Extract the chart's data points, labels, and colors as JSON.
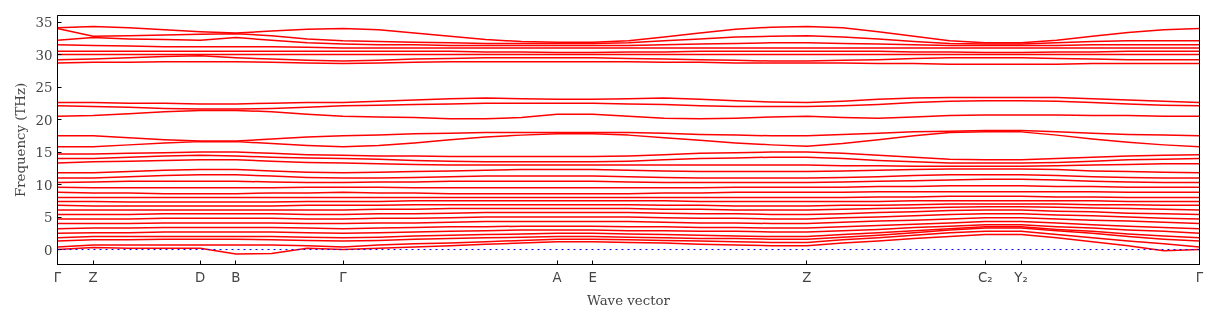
{
  "chart_data": {
    "type": "line",
    "xlabel": "Wave vector",
    "ylabel": "Frequency (THz)",
    "categories": [
      "Γ",
      "Z",
      null,
      null,
      "D",
      "B",
      null,
      null,
      "Γ",
      null,
      null,
      null,
      null,
      null,
      "A",
      "E",
      null,
      null,
      null,
      null,
      null,
      "Z",
      null,
      null,
      null,
      null,
      "C₂",
      "Y₂",
      null,
      null,
      null,
      null,
      "Γ"
    ],
    "ylim": [
      -2.3,
      36
    ],
    "yticks": [
      0,
      5,
      10,
      15,
      20,
      25,
      30,
      35
    ],
    "grid": false,
    "marker": "none",
    "line_style": "solid",
    "ref_lines": [
      {
        "axis": "y",
        "value": 0,
        "color": "#0000ff",
        "line_style": "dotted"
      }
    ],
    "series": [
      {
        "color": "#ff0000",
        "values": [
          34.1,
          34.3,
          34.1,
          33.8,
          33.5,
          33.3,
          33.6,
          33.9,
          34.0,
          33.8,
          33.3,
          32.8,
          32.3,
          32.0,
          31.9,
          31.9,
          32.1,
          32.7,
          33.3,
          33.9,
          34.2,
          34.3,
          34.1,
          33.5,
          32.8,
          32.1,
          31.8,
          31.8,
          32.2,
          32.8,
          33.4,
          33.8,
          34.0
        ]
      },
      {
        "color": "#ff0000",
        "values": [
          34.0,
          32.8,
          32.9,
          33.0,
          33.1,
          33.2,
          32.9,
          32.4,
          32.1,
          32.0,
          31.9,
          31.8,
          31.7,
          31.7,
          31.7,
          31.7,
          31.8,
          32.1,
          32.4,
          32.7,
          32.8,
          32.9,
          32.7,
          32.4,
          32.0,
          31.7,
          31.6,
          31.6,
          31.8,
          32.0,
          32.1,
          32.1,
          32.1
        ]
      },
      {
        "color": "#ff0000",
        "values": [
          32.2,
          32.6,
          32.4,
          32.3,
          32.2,
          32.6,
          32.2,
          31.8,
          31.6,
          31.5,
          31.5,
          31.4,
          31.4,
          31.4,
          31.4,
          31.4,
          31.4,
          31.5,
          31.6,
          31.7,
          31.8,
          31.8,
          31.7,
          31.6,
          31.5,
          31.4,
          31.4,
          31.4,
          31.4,
          31.5,
          31.5,
          31.5,
          31.5
        ]
      },
      {
        "color": "#ff0000",
        "values": [
          31.5,
          31.4,
          31.3,
          31.2,
          31.2,
          31.2,
          31.2,
          31.1,
          31.0,
          31.0,
          31.0,
          31.0,
          31.0,
          31.0,
          31.0,
          31.0,
          31.0,
          31.0,
          31.0,
          31.0,
          31.0,
          31.0,
          31.0,
          31.0,
          31.0,
          31.0,
          31.0,
          31.0,
          31.0,
          31.0,
          31.0,
          31.0,
          31.0
        ]
      },
      {
        "color": "#ff0000",
        "values": [
          30.5,
          30.5,
          30.5,
          30.5,
          30.5,
          30.5,
          30.5,
          30.5,
          30.5,
          30.5,
          30.5,
          30.5,
          30.4,
          30.4,
          30.3,
          30.3,
          30.4,
          30.4,
          30.5,
          30.5,
          30.5,
          30.5,
          30.5,
          30.5,
          30.4,
          30.4,
          30.3,
          30.3,
          30.4,
          30.4,
          30.5,
          30.5,
          30.5
        ]
      },
      {
        "color": "#ff0000",
        "values": [
          30.0,
          30.0,
          30.0,
          30.0,
          30.0,
          30.0,
          30.0,
          30.0,
          30.0,
          30.0,
          30.0,
          30.0,
          30.0,
          30.0,
          30.0,
          30.0,
          30.0,
          30.0,
          30.0,
          30.0,
          30.0,
          30.0,
          30.0,
          30.0,
          30.0,
          30.0,
          30.0,
          30.0,
          30.0,
          30.0,
          30.0,
          30.0,
          30.0
        ]
      },
      {
        "color": "#ff0000",
        "values": [
          29.2,
          29.3,
          29.5,
          29.7,
          29.8,
          29.5,
          29.3,
          29.1,
          29.0,
          29.1,
          29.3,
          29.4,
          29.5,
          29.5,
          29.5,
          29.5,
          29.4,
          29.3,
          29.2,
          29.1,
          29.0,
          29.0,
          29.1,
          29.2,
          29.4,
          29.5,
          29.5,
          29.5,
          29.4,
          29.3,
          29.2,
          29.2,
          29.2
        ]
      },
      {
        "color": "#ff0000",
        "values": [
          28.7,
          28.8,
          28.8,
          28.9,
          28.9,
          28.9,
          28.8,
          28.7,
          28.6,
          28.7,
          28.8,
          28.9,
          28.9,
          28.9,
          28.9,
          28.9,
          28.9,
          28.8,
          28.8,
          28.7,
          28.7,
          28.7,
          28.7,
          28.6,
          28.6,
          28.5,
          28.5,
          28.5,
          28.5,
          28.6,
          28.6,
          28.6,
          28.6
        ]
      },
      {
        "color": "#ff0000",
        "values": [
          22.6,
          22.6,
          22.5,
          22.5,
          22.4,
          22.4,
          22.5,
          22.6,
          22.6,
          22.8,
          23.0,
          23.2,
          23.3,
          23.2,
          23.1,
          23.1,
          23.2,
          23.3,
          23.1,
          22.9,
          22.7,
          22.6,
          22.8,
          23.1,
          23.3,
          23.4,
          23.4,
          23.4,
          23.4,
          23.2,
          23.0,
          22.8,
          22.6
        ]
      },
      {
        "color": "#ff0000",
        "values": [
          22.1,
          22.0,
          21.9,
          21.7,
          21.6,
          21.6,
          21.7,
          21.9,
          22.1,
          22.2,
          22.3,
          22.4,
          22.5,
          22.5,
          22.5,
          22.5,
          22.4,
          22.3,
          22.1,
          22.0,
          22.0,
          22.0,
          22.1,
          22.3,
          22.6,
          22.8,
          22.9,
          22.9,
          22.8,
          22.6,
          22.4,
          22.2,
          22.1
        ]
      },
      {
        "color": "#ff0000",
        "values": [
          20.5,
          20.6,
          20.9,
          21.2,
          21.4,
          21.4,
          21.2,
          20.8,
          20.5,
          20.4,
          20.3,
          20.1,
          20.1,
          20.3,
          20.8,
          20.8,
          20.5,
          20.2,
          20.1,
          20.2,
          20.4,
          20.5,
          20.3,
          20.2,
          20.4,
          20.6,
          20.7,
          20.7,
          20.7,
          20.6,
          20.6,
          20.5,
          20.5
        ]
      },
      {
        "color": "#ff0000",
        "values": [
          17.5,
          17.5,
          17.2,
          16.9,
          16.7,
          16.7,
          17.0,
          17.3,
          17.5,
          17.6,
          17.8,
          17.9,
          18.0,
          18.0,
          18.0,
          18.0,
          18.0,
          17.9,
          17.7,
          17.6,
          17.5,
          17.5,
          17.7,
          17.9,
          18.1,
          18.2,
          18.3,
          18.3,
          18.1,
          17.9,
          17.7,
          17.6,
          17.5
        ]
      },
      {
        "color": "#ff0000",
        "values": [
          15.8,
          15.8,
          16.1,
          16.4,
          16.6,
          16.6,
          16.3,
          16.0,
          15.8,
          16.0,
          16.4,
          16.9,
          17.3,
          17.6,
          17.8,
          17.8,
          17.6,
          17.2,
          16.8,
          16.4,
          16.1,
          15.9,
          16.3,
          16.9,
          17.5,
          18.0,
          18.1,
          18.1,
          17.6,
          17.0,
          16.5,
          16.1,
          15.8
        ]
      },
      {
        "color": "#ff0000",
        "values": [
          14.7,
          14.7,
          14.8,
          14.9,
          15.0,
          15.0,
          14.8,
          14.6,
          14.5,
          14.4,
          14.4,
          14.3,
          14.3,
          14.3,
          14.3,
          14.3,
          14.4,
          14.6,
          14.8,
          14.9,
          15.0,
          15.0,
          14.8,
          14.5,
          14.2,
          13.9,
          13.8,
          13.8,
          14.0,
          14.2,
          14.4,
          14.5,
          14.6
        ]
      },
      {
        "color": "#ff0000",
        "values": [
          14.0,
          14.0,
          14.2,
          14.4,
          14.5,
          14.4,
          14.2,
          14.1,
          14.0,
          13.9,
          13.7,
          13.6,
          13.5,
          13.5,
          13.5,
          13.5,
          13.6,
          13.8,
          14.0,
          14.1,
          14.2,
          14.2,
          14.0,
          13.7,
          13.5,
          13.3,
          13.3,
          13.3,
          13.4,
          13.6,
          13.8,
          13.9,
          14.0
        ]
      },
      {
        "color": "#ff0000",
        "values": [
          13.3,
          13.5,
          13.6,
          13.7,
          13.8,
          13.8,
          13.6,
          13.4,
          13.3,
          13.2,
          13.1,
          13.0,
          13.0,
          13.0,
          13.0,
          13.0,
          13.0,
          13.0,
          13.0,
          13.0,
          13.0,
          13.0,
          12.9,
          12.9,
          12.8,
          12.8,
          12.8,
          12.8,
          12.9,
          13.0,
          13.1,
          13.2,
          13.2
        ]
      },
      {
        "color": "#ff0000",
        "values": [
          11.8,
          11.8,
          12.0,
          12.2,
          12.3,
          12.3,
          12.1,
          11.9,
          11.8,
          11.9,
          12.0,
          12.1,
          12.2,
          12.3,
          12.3,
          12.3,
          12.2,
          12.1,
          12.0,
          12.0,
          12.0,
          12.0,
          12.1,
          12.2,
          12.3,
          12.4,
          12.4,
          12.4,
          12.3,
          12.1,
          12.0,
          11.9,
          11.8
        ]
      },
      {
        "color": "#ff0000",
        "values": [
          11.0,
          11.0,
          11.2,
          11.4,
          11.5,
          11.5,
          11.3,
          11.1,
          11.0,
          11.0,
          11.1,
          11.2,
          11.3,
          11.3,
          11.3,
          11.3,
          11.2,
          11.1,
          11.0,
          11.0,
          11.0,
          11.0,
          11.1,
          11.2,
          11.4,
          11.5,
          11.5,
          11.5,
          11.4,
          11.2,
          11.1,
          11.0,
          11.0
        ]
      },
      {
        "color": "#ff0000",
        "values": [
          10.3,
          10.4,
          10.5,
          10.5,
          10.5,
          10.5,
          10.4,
          10.3,
          10.3,
          10.4,
          10.4,
          10.5,
          10.5,
          10.5,
          10.5,
          10.5,
          10.4,
          10.3,
          10.3,
          10.3,
          10.3,
          10.3,
          10.4,
          10.5,
          10.6,
          10.7,
          10.8,
          10.8,
          10.7,
          10.5,
          10.4,
          10.3,
          10.3
        ]
      },
      {
        "color": "#ff0000",
        "values": [
          9.6,
          9.5,
          9.5,
          9.5,
          9.5,
          9.5,
          9.5,
          9.6,
          9.6,
          9.6,
          9.5,
          9.5,
          9.5,
          9.5,
          9.5,
          9.5,
          9.5,
          9.5,
          9.5,
          9.6,
          9.6,
          9.6,
          9.6,
          9.7,
          9.7,
          9.8,
          9.8,
          9.8,
          9.7,
          9.7,
          9.6,
          9.6,
          9.6
        ]
      },
      {
        "color": "#ff0000",
        "values": [
          8.8,
          8.7,
          8.7,
          8.6,
          8.6,
          8.6,
          8.7,
          8.7,
          8.8,
          8.7,
          8.7,
          8.6,
          8.6,
          8.6,
          8.6,
          8.6,
          8.6,
          8.7,
          8.7,
          8.8,
          8.8,
          8.8,
          8.8,
          8.9,
          8.9,
          8.9,
          8.9,
          8.9,
          8.9,
          8.9,
          8.8,
          8.8,
          8.8
        ]
      },
      {
        "color": "#ff0000",
        "values": [
          8.0,
          8.0,
          8.0,
          8.0,
          8.0,
          8.0,
          8.0,
          8.0,
          8.0,
          8.0,
          8.0,
          8.0,
          8.0,
          8.0,
          8.0,
          8.0,
          8.0,
          8.0,
          8.0,
          8.0,
          8.0,
          8.0,
          8.0,
          8.1,
          8.1,
          8.2,
          8.2,
          8.2,
          8.1,
          8.1,
          8.0,
          8.0,
          8.0
        ]
      },
      {
        "color": "#ff0000",
        "values": [
          7.4,
          7.4,
          7.3,
          7.3,
          7.3,
          7.3,
          7.3,
          7.4,
          7.4,
          7.4,
          7.5,
          7.5,
          7.5,
          7.5,
          7.5,
          7.5,
          7.5,
          7.5,
          7.4,
          7.4,
          7.4,
          7.4,
          7.4,
          7.4,
          7.5,
          7.5,
          7.5,
          7.5,
          7.5,
          7.5,
          7.4,
          7.4,
          7.4
        ]
      },
      {
        "color": "#ff0000",
        "values": [
          6.8,
          6.7,
          6.7,
          6.7,
          6.7,
          6.7,
          6.7,
          6.8,
          6.8,
          6.8,
          6.9,
          6.9,
          6.9,
          6.9,
          6.9,
          6.9,
          6.9,
          6.8,
          6.8,
          6.7,
          6.7,
          6.7,
          6.8,
          6.8,
          6.9,
          7.0,
          7.0,
          7.0,
          7.0,
          6.9,
          6.9,
          6.8,
          6.8
        ]
      },
      {
        "color": "#ff0000",
        "values": [
          6.1,
          6.1,
          6.1,
          6.1,
          6.1,
          6.1,
          6.1,
          6.1,
          6.1,
          6.2,
          6.2,
          6.3,
          6.3,
          6.3,
          6.3,
          6.3,
          6.3,
          6.2,
          6.2,
          6.1,
          6.1,
          6.1,
          6.2,
          6.3,
          6.4,
          6.5,
          6.6,
          6.6,
          6.5,
          6.4,
          6.3,
          6.2,
          6.1
        ]
      },
      {
        "color": "#ff0000",
        "values": [
          5.4,
          5.4,
          5.4,
          5.5,
          5.5,
          5.5,
          5.5,
          5.4,
          5.4,
          5.5,
          5.5,
          5.6,
          5.7,
          5.7,
          5.7,
          5.7,
          5.7,
          5.6,
          5.5,
          5.5,
          5.4,
          5.4,
          5.5,
          5.7,
          5.8,
          6.0,
          6.1,
          6.1,
          5.9,
          5.8,
          5.6,
          5.5,
          5.4
        ]
      },
      {
        "color": "#ff0000",
        "values": [
          4.7,
          4.7,
          4.7,
          4.8,
          4.8,
          4.8,
          4.8,
          4.7,
          4.7,
          4.8,
          4.8,
          4.9,
          5.0,
          5.0,
          5.0,
          5.0,
          5.0,
          4.9,
          4.8,
          4.8,
          4.7,
          4.7,
          4.9,
          5.0,
          5.2,
          5.4,
          5.5,
          5.5,
          5.3,
          5.2,
          5.0,
          4.8,
          4.7
        ]
      },
      {
        "color": "#ff0000",
        "values": [
          4.0,
          4.0,
          4.0,
          4.1,
          4.1,
          4.1,
          4.1,
          4.0,
          4.0,
          4.1,
          4.1,
          4.2,
          4.3,
          4.3,
          4.3,
          4.3,
          4.3,
          4.2,
          4.1,
          4.1,
          4.0,
          4.0,
          4.2,
          4.4,
          4.5,
          4.7,
          4.9,
          4.9,
          4.7,
          4.5,
          4.4,
          4.2,
          4.0
        ]
      },
      {
        "color": "#ff0000",
        "values": [
          3.2,
          3.3,
          3.3,
          3.4,
          3.4,
          3.4,
          3.4,
          3.3,
          3.2,
          3.3,
          3.4,
          3.5,
          3.5,
          3.6,
          3.6,
          3.6,
          3.5,
          3.5,
          3.4,
          3.4,
          3.3,
          3.3,
          3.5,
          3.7,
          3.9,
          4.1,
          4.3,
          4.3,
          4.1,
          3.8,
          3.6,
          3.4,
          3.2
        ]
      },
      {
        "color": "#ff0000",
        "values": [
          2.5,
          2.6,
          2.6,
          2.7,
          2.7,
          2.7,
          2.7,
          2.6,
          2.5,
          2.6,
          2.7,
          2.8,
          2.9,
          3.0,
          3.0,
          3.0,
          2.9,
          2.9,
          2.8,
          2.8,
          2.7,
          2.7,
          2.9,
          3.1,
          3.4,
          3.6,
          3.8,
          3.8,
          3.5,
          3.3,
          3.0,
          2.8,
          2.5
        ]
      },
      {
        "color": "#ff0000",
        "values": [
          1.8,
          2.0,
          2.0,
          2.0,
          2.0,
          2.0,
          2.0,
          1.9,
          1.8,
          1.9,
          2.1,
          2.2,
          2.3,
          2.4,
          2.5,
          2.5,
          2.4,
          2.3,
          2.2,
          2.1,
          2.0,
          2.0,
          2.3,
          2.6,
          2.9,
          3.2,
          3.5,
          3.5,
          3.1,
          2.8,
          2.4,
          2.1,
          1.8
        ]
      },
      {
        "color": "#ff0000",
        "values": [
          1.3,
          1.5,
          1.5,
          1.6,
          1.6,
          1.6,
          1.5,
          1.4,
          1.3,
          1.4,
          1.6,
          1.7,
          1.8,
          1.9,
          2.0,
          2.0,
          1.9,
          1.8,
          1.7,
          1.7,
          1.6,
          1.6,
          1.9,
          2.2,
          2.6,
          3.0,
          3.3,
          3.3,
          2.9,
          2.5,
          2.0,
          1.6,
          1.3
        ]
      },
      {
        "color": "#ff0000",
        "values": [
          0.4,
          0.7,
          0.7,
          0.7,
          0.7,
          0.7,
          0.7,
          0.6,
          0.4,
          0.7,
          0.9,
          1.0,
          1.2,
          1.4,
          1.6,
          1.6,
          1.5,
          1.4,
          1.3,
          1.2,
          1.1,
          1.1,
          1.5,
          1.8,
          2.2,
          2.6,
          2.8,
          2.8,
          2.3,
          1.8,
          1.3,
          0.9,
          0.4
        ]
      },
      {
        "color": "#ff0000",
        "values": [
          0,
          0.3,
          0.2,
          0.2,
          0.2,
          -0.7,
          -0.6,
          0.2,
          0,
          0.2,
          0.4,
          0.6,
          0.8,
          1.0,
          1.2,
          1.2,
          1.1,
          1.0,
          0.8,
          0.7,
          0.6,
          0.6,
          1.0,
          1.3,
          1.7,
          2.0,
          2.3,
          2.3,
          1.8,
          1.2,
          0.6,
          -0.2,
          0
        ]
      }
    ]
  }
}
